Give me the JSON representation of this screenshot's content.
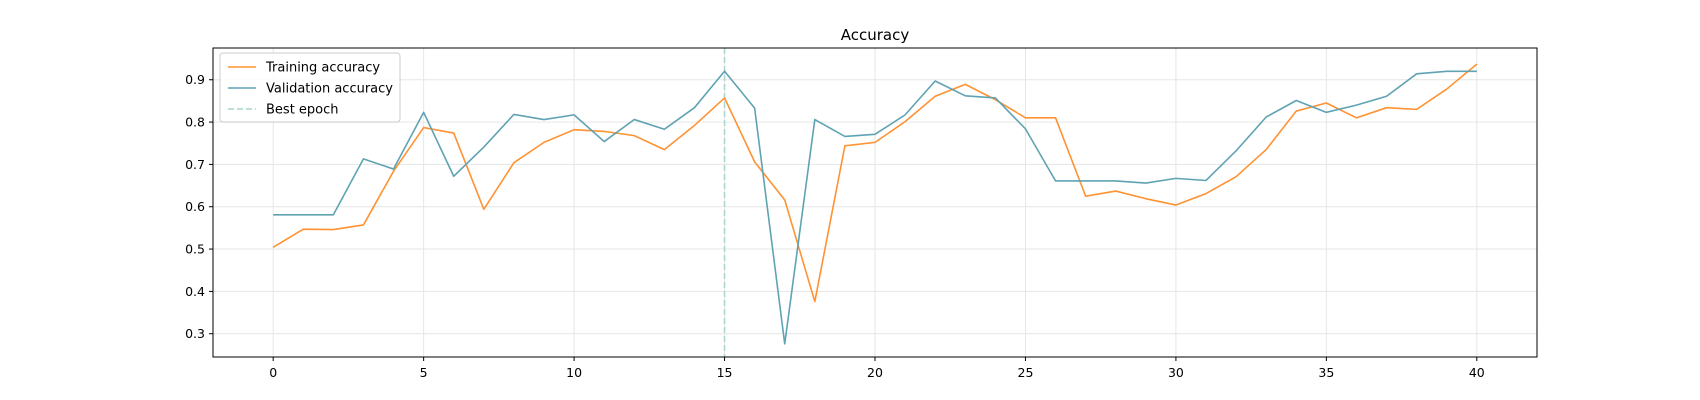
{
  "chart_data": {
    "type": "line",
    "title": "Accuracy",
    "xlabel": "",
    "ylabel": "",
    "xlim": [
      -2,
      42
    ],
    "ylim": [
      0.245,
      0.975
    ],
    "xticks": [
      0,
      5,
      10,
      15,
      20,
      25,
      30,
      35,
      40
    ],
    "yticks": [
      0.3,
      0.4,
      0.5,
      0.6,
      0.7,
      0.8,
      0.9
    ],
    "grid": true,
    "legend_position": "top-left",
    "x": [
      0,
      1,
      2,
      3,
      4,
      5,
      6,
      7,
      8,
      9,
      10,
      11,
      12,
      13,
      14,
      15,
      16,
      17,
      18,
      19,
      20,
      21,
      22,
      23,
      24,
      25,
      26,
      27,
      28,
      29,
      30,
      31,
      32,
      33,
      34,
      35,
      36,
      37,
      38,
      39,
      40
    ],
    "series": [
      {
        "name": "Training accuracy",
        "color": "#ff9232",
        "values": [
          0.504,
          0.547,
          0.546,
          0.557,
          0.684,
          0.787,
          0.774,
          0.594,
          0.704,
          0.752,
          0.782,
          0.778,
          0.768,
          0.735,
          0.792,
          0.857,
          0.706,
          0.616,
          0.376,
          0.744,
          0.752,
          0.801,
          0.861,
          0.889,
          0.853,
          0.81,
          0.81,
          0.625,
          0.637,
          0.619,
          0.604,
          0.631,
          0.671,
          0.735,
          0.826,
          0.845,
          0.81,
          0.834,
          0.83,
          0.878,
          0.937
        ]
      },
      {
        "name": "Validation accuracy",
        "color": "#5fa3b3",
        "values": [
          0.581,
          0.581,
          0.581,
          0.713,
          0.689,
          0.823,
          0.672,
          0.741,
          0.818,
          0.806,
          0.817,
          0.754,
          0.806,
          0.783,
          0.834,
          0.92,
          0.833,
          0.276,
          0.806,
          0.766,
          0.771,
          0.817,
          0.897,
          0.862,
          0.857,
          0.784,
          0.661,
          0.661,
          0.661,
          0.656,
          0.667,
          0.662,
          0.732,
          0.812,
          0.851,
          0.823,
          0.84,
          0.861,
          0.914,
          0.92,
          0.92
        ]
      }
    ],
    "best_epoch": {
      "name": "Best epoch",
      "x": 15,
      "color": "#a8d5cc"
    }
  }
}
